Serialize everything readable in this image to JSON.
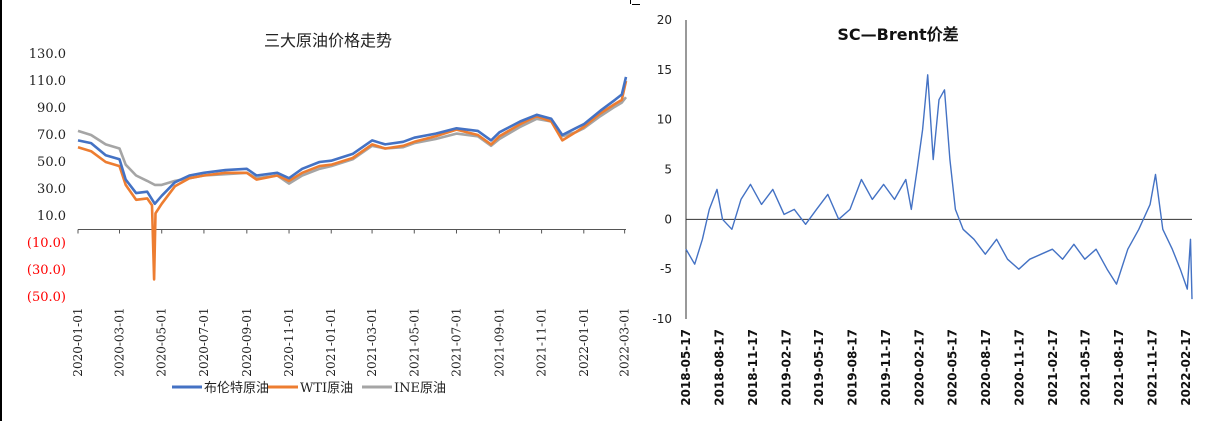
{
  "chart_data": [
    {
      "type": "line",
      "title": "三大原油价格走势",
      "ylim": [
        -50,
        130
      ],
      "yticks": [
        "130.0",
        "110.0",
        "90.0",
        "70.0",
        "50.0",
        "30.0",
        "10.0",
        "(10.0)",
        "(30.0)",
        "(50.0)"
      ],
      "negative_tick_color": "#ff0000",
      "x_tick_labels": [
        "2020-01-01",
        "2020-03-01",
        "2020-05-01",
        "2020-07-01",
        "2020-09-01",
        "2020-11-01",
        "2021-01-01",
        "2021-03-01",
        "2021-05-01",
        "2021-07-01",
        "2021-09-01",
        "2021-11-01",
        "2022-01-01",
        "2022-03-01"
      ],
      "legend_position": "bottom",
      "series": [
        {
          "name": "布伦特原油",
          "color": "#4472c4",
          "points": [
            {
              "x": "2020-01-01",
              "y": 66
            },
            {
              "x": "2020-01-20",
              "y": 64
            },
            {
              "x": "2020-02-10",
              "y": 55
            },
            {
              "x": "2020-03-01",
              "y": 52
            },
            {
              "x": "2020-03-10",
              "y": 37
            },
            {
              "x": "2020-03-25",
              "y": 27
            },
            {
              "x": "2020-04-10",
              "y": 28
            },
            {
              "x": "2020-04-21",
              "y": 19
            },
            {
              "x": "2020-05-01",
              "y": 25
            },
            {
              "x": "2020-05-20",
              "y": 35
            },
            {
              "x": "2020-06-10",
              "y": 40
            },
            {
              "x": "2020-07-01",
              "y": 42
            },
            {
              "x": "2020-08-01",
              "y": 44
            },
            {
              "x": "2020-09-01",
              "y": 45
            },
            {
              "x": "2020-09-15",
              "y": 40
            },
            {
              "x": "2020-10-15",
              "y": 42
            },
            {
              "x": "2020-11-01",
              "y": 38
            },
            {
              "x": "2020-11-20",
              "y": 45
            },
            {
              "x": "2020-12-15",
              "y": 50
            },
            {
              "x": "2021-01-01",
              "y": 51
            },
            {
              "x": "2021-02-01",
              "y": 56
            },
            {
              "x": "2021-03-01",
              "y": 66
            },
            {
              "x": "2021-03-20",
              "y": 63
            },
            {
              "x": "2021-04-15",
              "y": 65
            },
            {
              "x": "2021-05-01",
              "y": 68
            },
            {
              "x": "2021-06-01",
              "y": 71
            },
            {
              "x": "2021-07-01",
              "y": 75
            },
            {
              "x": "2021-08-01",
              "y": 73
            },
            {
              "x": "2021-08-20",
              "y": 66
            },
            {
              "x": "2021-09-01",
              "y": 72
            },
            {
              "x": "2021-10-01",
              "y": 80
            },
            {
              "x": "2021-10-25",
              "y": 85
            },
            {
              "x": "2021-11-15",
              "y": 82
            },
            {
              "x": "2021-12-01",
              "y": 70
            },
            {
              "x": "2021-12-20",
              "y": 75
            },
            {
              "x": "2022-01-01",
              "y": 78
            },
            {
              "x": "2022-01-25",
              "y": 88
            },
            {
              "x": "2022-02-15",
              "y": 96
            },
            {
              "x": "2022-02-25",
              "y": 100
            },
            {
              "x": "2022-03-03",
              "y": 113
            }
          ]
        },
        {
          "name": "WTI原油",
          "color": "#ed7d31",
          "points": [
            {
              "x": "2020-01-01",
              "y": 61
            },
            {
              "x": "2020-01-20",
              "y": 58
            },
            {
              "x": "2020-02-10",
              "y": 50
            },
            {
              "x": "2020-03-01",
              "y": 47
            },
            {
              "x": "2020-03-10",
              "y": 33
            },
            {
              "x": "2020-03-25",
              "y": 22
            },
            {
              "x": "2020-04-10",
              "y": 23
            },
            {
              "x": "2020-04-17",
              "y": 18
            },
            {
              "x": "2020-04-20",
              "y": -37
            },
            {
              "x": "2020-04-22",
              "y": 12
            },
            {
              "x": "2020-05-01",
              "y": 19
            },
            {
              "x": "2020-05-20",
              "y": 32
            },
            {
              "x": "2020-06-10",
              "y": 38
            },
            {
              "x": "2020-07-01",
              "y": 40
            },
            {
              "x": "2020-08-01",
              "y": 42
            },
            {
              "x": "2020-09-01",
              "y": 42
            },
            {
              "x": "2020-09-15",
              "y": 37
            },
            {
              "x": "2020-10-15",
              "y": 40
            },
            {
              "x": "2020-11-01",
              "y": 36
            },
            {
              "x": "2020-11-20",
              "y": 42
            },
            {
              "x": "2020-12-15",
              "y": 47
            },
            {
              "x": "2021-01-01",
              "y": 48
            },
            {
              "x": "2021-02-01",
              "y": 53
            },
            {
              "x": "2021-03-01",
              "y": 63
            },
            {
              "x": "2021-03-20",
              "y": 60
            },
            {
              "x": "2021-04-15",
              "y": 62
            },
            {
              "x": "2021-05-01",
              "y": 65
            },
            {
              "x": "2021-06-01",
              "y": 69
            },
            {
              "x": "2021-07-01",
              "y": 74
            },
            {
              "x": "2021-08-01",
              "y": 70
            },
            {
              "x": "2021-08-20",
              "y": 63
            },
            {
              "x": "2021-09-01",
              "y": 69
            },
            {
              "x": "2021-10-01",
              "y": 78
            },
            {
              "x": "2021-10-25",
              "y": 84
            },
            {
              "x": "2021-11-15",
              "y": 80
            },
            {
              "x": "2021-12-01",
              "y": 66
            },
            {
              "x": "2021-12-20",
              "y": 72
            },
            {
              "x": "2022-01-01",
              "y": 76
            },
            {
              "x": "2022-01-25",
              "y": 86
            },
            {
              "x": "2022-02-15",
              "y": 93
            },
            {
              "x": "2022-02-25",
              "y": 96
            },
            {
              "x": "2022-03-03",
              "y": 110
            }
          ]
        },
        {
          "name": "INE原油",
          "color": "#a5a5a5",
          "points": [
            {
              "x": "2020-01-01",
              "y": 73
            },
            {
              "x": "2020-01-20",
              "y": 70
            },
            {
              "x": "2020-02-10",
              "y": 63
            },
            {
              "x": "2020-03-01",
              "y": 60
            },
            {
              "x": "2020-03-10",
              "y": 48
            },
            {
              "x": "2020-03-25",
              "y": 40
            },
            {
              "x": "2020-04-10",
              "y": 36
            },
            {
              "x": "2020-04-21",
              "y": 33
            },
            {
              "x": "2020-05-01",
              "y": 33
            },
            {
              "x": "2020-05-20",
              "y": 36
            },
            {
              "x": "2020-06-10",
              "y": 38
            },
            {
              "x": "2020-07-01",
              "y": 40
            },
            {
              "x": "2020-08-01",
              "y": 41
            },
            {
              "x": "2020-09-01",
              "y": 42
            },
            {
              "x": "2020-09-15",
              "y": 38
            },
            {
              "x": "2020-10-15",
              "y": 40
            },
            {
              "x": "2020-11-01",
              "y": 34
            },
            {
              "x": "2020-11-20",
              "y": 40
            },
            {
              "x": "2020-12-15",
              "y": 45
            },
            {
              "x": "2021-01-01",
              "y": 47
            },
            {
              "x": "2021-02-01",
              "y": 52
            },
            {
              "x": "2021-03-01",
              "y": 62
            },
            {
              "x": "2021-03-20",
              "y": 60
            },
            {
              "x": "2021-04-15",
              "y": 61
            },
            {
              "x": "2021-05-01",
              "y": 64
            },
            {
              "x": "2021-06-01",
              "y": 67
            },
            {
              "x": "2021-07-01",
              "y": 71
            },
            {
              "x": "2021-08-01",
              "y": 69
            },
            {
              "x": "2021-08-20",
              "y": 62
            },
            {
              "x": "2021-09-01",
              "y": 67
            },
            {
              "x": "2021-10-01",
              "y": 76
            },
            {
              "x": "2021-10-25",
              "y": 82
            },
            {
              "x": "2021-11-15",
              "y": 80
            },
            {
              "x": "2021-12-01",
              "y": 69
            },
            {
              "x": "2021-12-20",
              "y": 72
            },
            {
              "x": "2022-01-01",
              "y": 75
            },
            {
              "x": "2022-01-25",
              "y": 84
            },
            {
              "x": "2022-02-15",
              "y": 91
            },
            {
              "x": "2022-02-25",
              "y": 94
            },
            {
              "x": "2022-03-03",
              "y": 98
            }
          ]
        }
      ]
    },
    {
      "type": "line",
      "title": "SC—Brent价差",
      "ylim": [
        -10,
        20
      ],
      "yticks": [
        "20",
        "15",
        "10",
        "5",
        "0",
        "-5",
        "-10"
      ],
      "x_tick_labels": [
        "2018-05-17",
        "2018-08-17",
        "2018-11-17",
        "2019-02-17",
        "2019-05-17",
        "2019-08-17",
        "2019-11-17",
        "2020-02-17",
        "2020-05-17",
        "2020-08-17",
        "2020-11-17",
        "2021-02-17",
        "2021-05-17",
        "2021-08-17",
        "2021-11-17",
        "2022-02-17"
      ],
      "series": [
        {
          "color": "#4472c4",
          "points": [
            {
              "x": "2018-05-17",
              "y": -3
            },
            {
              "x": "2018-06-10",
              "y": -4.5
            },
            {
              "x": "2018-07-01",
              "y": -2
            },
            {
              "x": "2018-07-20",
              "y": 1
            },
            {
              "x": "2018-08-10",
              "y": 3
            },
            {
              "x": "2018-08-25",
              "y": 0
            },
            {
              "x": "2018-09-20",
              "y": -1
            },
            {
              "x": "2018-10-15",
              "y": 2
            },
            {
              "x": "2018-11-10",
              "y": 3.5
            },
            {
              "x": "2018-12-10",
              "y": 1.5
            },
            {
              "x": "2019-01-10",
              "y": 3
            },
            {
              "x": "2019-02-10",
              "y": 0.5
            },
            {
              "x": "2019-03-10",
              "y": 1
            },
            {
              "x": "2019-04-10",
              "y": -0.5
            },
            {
              "x": "2019-05-10",
              "y": 1
            },
            {
              "x": "2019-06-10",
              "y": 2.5
            },
            {
              "x": "2019-07-10",
              "y": 0
            },
            {
              "x": "2019-08-10",
              "y": 1
            },
            {
              "x": "2019-09-10",
              "y": 4
            },
            {
              "x": "2019-10-10",
              "y": 2
            },
            {
              "x": "2019-11-10",
              "y": 3.5
            },
            {
              "x": "2019-12-10",
              "y": 2
            },
            {
              "x": "2020-01-10",
              "y": 4
            },
            {
              "x": "2020-01-25",
              "y": 1
            },
            {
              "x": "2020-02-10",
              "y": 5
            },
            {
              "x": "2020-02-25",
              "y": 9
            },
            {
              "x": "2020-03-10",
              "y": 14.5
            },
            {
              "x": "2020-03-25",
              "y": 6
            },
            {
              "x": "2020-04-10",
              "y": 12
            },
            {
              "x": "2020-04-25",
              "y": 13
            },
            {
              "x": "2020-05-10",
              "y": 6
            },
            {
              "x": "2020-05-25",
              "y": 1
            },
            {
              "x": "2020-06-15",
              "y": -1
            },
            {
              "x": "2020-07-15",
              "y": -2
            },
            {
              "x": "2020-08-15",
              "y": -3.5
            },
            {
              "x": "2020-09-15",
              "y": -2
            },
            {
              "x": "2020-10-15",
              "y": -4
            },
            {
              "x": "2020-11-15",
              "y": -5
            },
            {
              "x": "2020-12-15",
              "y": -4
            },
            {
              "x": "2021-01-15",
              "y": -3.5
            },
            {
              "x": "2021-02-15",
              "y": -3
            },
            {
              "x": "2021-03-15",
              "y": -4
            },
            {
              "x": "2021-04-15",
              "y": -2.5
            },
            {
              "x": "2021-05-15",
              "y": -4
            },
            {
              "x": "2021-06-15",
              "y": -3
            },
            {
              "x": "2021-07-15",
              "y": -5
            },
            {
              "x": "2021-08-10",
              "y": -6.5
            },
            {
              "x": "2021-09-10",
              "y": -3
            },
            {
              "x": "2021-10-10",
              "y": -1
            },
            {
              "x": "2021-11-10",
              "y": 1.5
            },
            {
              "x": "2021-11-25",
              "y": 4.5
            },
            {
              "x": "2021-12-15",
              "y": -1
            },
            {
              "x": "2022-01-10",
              "y": -3
            },
            {
              "x": "2022-02-01",
              "y": -5
            },
            {
              "x": "2022-02-20",
              "y": -7
            },
            {
              "x": "2022-03-01",
              "y": -2
            },
            {
              "x": "2022-03-05",
              "y": -8
            }
          ]
        }
      ]
    }
  ]
}
